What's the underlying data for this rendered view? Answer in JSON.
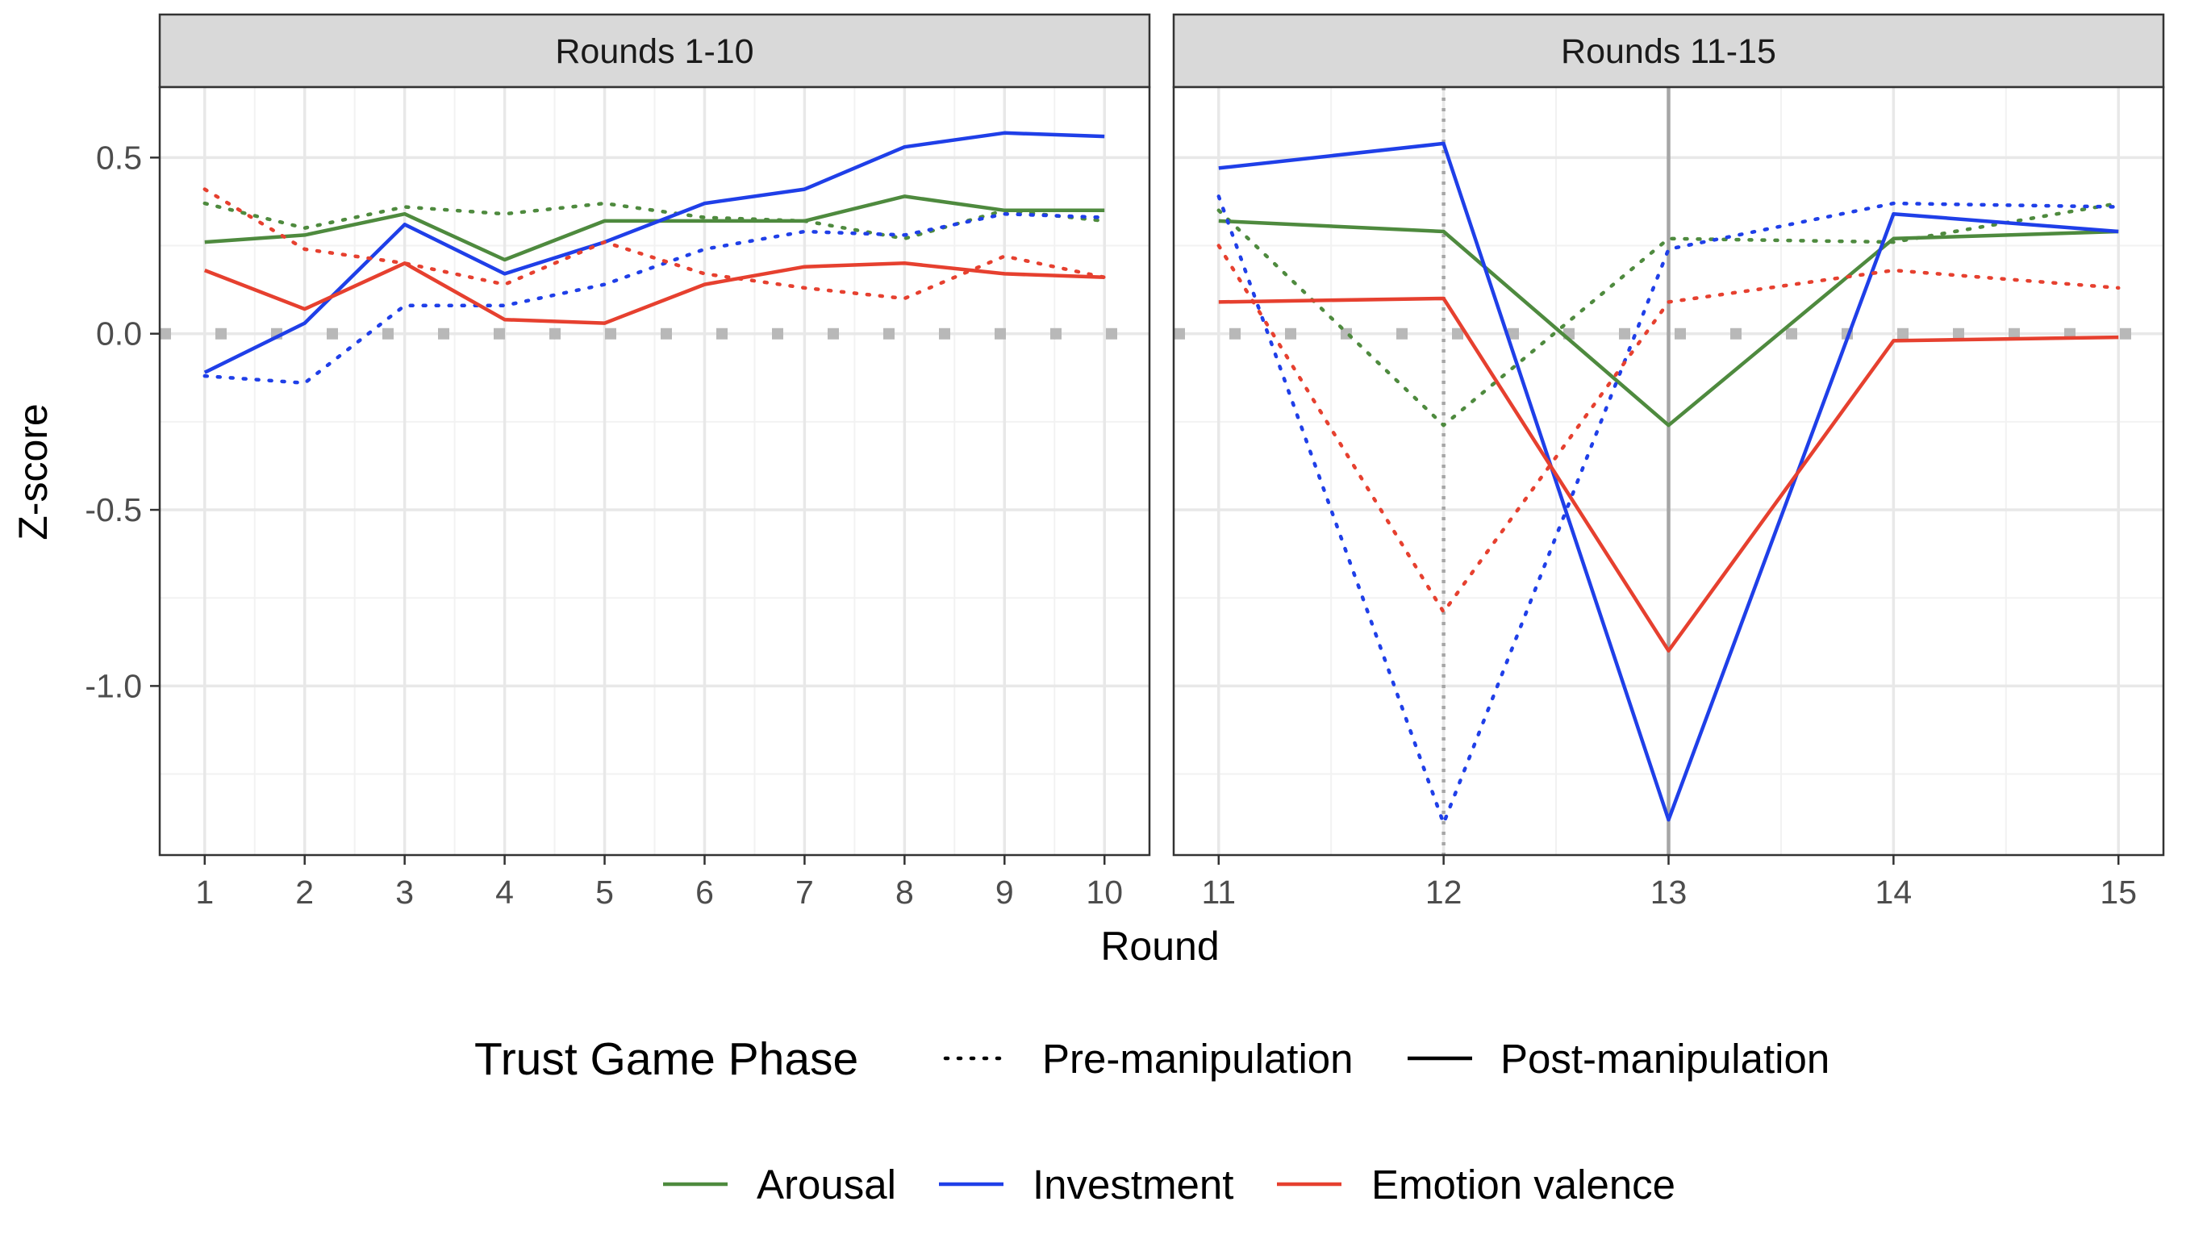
{
  "chart_data": {
    "type": "line",
    "xlabel": "Round",
    "ylabel": "Z-score",
    "ylim": [
      -1.48,
      0.7
    ],
    "y_ticks": [
      {
        "value": 0.5,
        "label": "0.5"
      },
      {
        "value": 0.0,
        "label": "0.0"
      },
      {
        "value": -0.5,
        "label": "-0.5"
      },
      {
        "value": -1.0,
        "label": "-1.0"
      }
    ],
    "grid": true,
    "reference_line_y": 0,
    "colors": {
      "Arousal": "#4e8a3e",
      "Investment": "#1f3fe8",
      "Emotion valence": "#e6402f",
      "reference": "#b8b8b8",
      "strip_bg": "#d9d9d9"
    },
    "legend": {
      "position": "bottom",
      "linetype_title": "Trust Game Phase",
      "linetype_items": [
        {
          "key": "pre",
          "label": "Pre-manipulation",
          "dash": "dotted"
        },
        {
          "key": "post",
          "label": "Post-manipulation",
          "dash": "solid"
        }
      ],
      "color_items": [
        {
          "key": "Arousal",
          "label": "Arousal"
        },
        {
          "key": "Investment",
          "label": "Investment"
        },
        {
          "key": "Emotion valence",
          "label": "Emotion valence"
        }
      ]
    },
    "panels": [
      {
        "title": "Rounds 1-10",
        "x": [
          1,
          2,
          3,
          4,
          5,
          6,
          7,
          8,
          9,
          10
        ],
        "xlim": [
          0.55,
          10.45
        ],
        "x_ticks": [
          1,
          2,
          3,
          4,
          5,
          6,
          7,
          8,
          9,
          10
        ],
        "vlines": [],
        "series": [
          {
            "name": "Arousal",
            "phase": "pre",
            "values": [
              0.37,
              0.3,
              0.36,
              0.34,
              0.37,
              0.33,
              0.32,
              0.27,
              0.35,
              0.32
            ]
          },
          {
            "name": "Arousal",
            "phase": "post",
            "values": [
              0.26,
              0.28,
              0.34,
              0.21,
              0.32,
              0.32,
              0.32,
              0.39,
              0.35,
              0.35
            ]
          },
          {
            "name": "Investment",
            "phase": "pre",
            "values": [
              -0.12,
              -0.14,
              0.08,
              0.08,
              0.14,
              0.24,
              0.29,
              0.28,
              0.34,
              0.33
            ]
          },
          {
            "name": "Investment",
            "phase": "post",
            "values": [
              -0.11,
              0.03,
              0.31,
              0.17,
              0.26,
              0.37,
              0.41,
              0.53,
              0.57,
              0.56
            ]
          },
          {
            "name": "Emotion valence",
            "phase": "pre",
            "values": [
              0.41,
              0.24,
              0.2,
              0.14,
              0.26,
              0.17,
              0.13,
              0.1,
              0.22,
              0.16
            ]
          },
          {
            "name": "Emotion valence",
            "phase": "post",
            "values": [
              0.18,
              0.07,
              0.2,
              0.04,
              0.03,
              0.14,
              0.19,
              0.2,
              0.17,
              0.16
            ]
          }
        ]
      },
      {
        "title": "Rounds 11-15",
        "x": [
          11,
          12,
          13,
          14,
          15
        ],
        "xlim": [
          10.8,
          15.2
        ],
        "x_ticks": [
          11,
          12,
          13,
          14,
          15
        ],
        "vlines": [
          {
            "x": 12,
            "style": "dotted"
          },
          {
            "x": 13,
            "style": "solid"
          }
        ],
        "series": [
          {
            "name": "Arousal",
            "phase": "pre",
            "values": [
              0.35,
              -0.26,
              0.27,
              0.26,
              0.37
            ]
          },
          {
            "name": "Arousal",
            "phase": "post",
            "values": [
              0.32,
              0.29,
              -0.26,
              0.27,
              0.29
            ]
          },
          {
            "name": "Investment",
            "phase": "pre",
            "values": [
              0.39,
              -1.39,
              0.24,
              0.37,
              0.36
            ]
          },
          {
            "name": "Investment",
            "phase": "post",
            "values": [
              0.47,
              0.54,
              -1.38,
              0.34,
              0.29
            ]
          },
          {
            "name": "Emotion valence",
            "phase": "pre",
            "values": [
              0.25,
              -0.79,
              0.09,
              0.18,
              0.13
            ]
          },
          {
            "name": "Emotion valence",
            "phase": "post",
            "values": [
              0.09,
              0.1,
              -0.9,
              -0.02,
              -0.01
            ]
          }
        ]
      }
    ]
  }
}
